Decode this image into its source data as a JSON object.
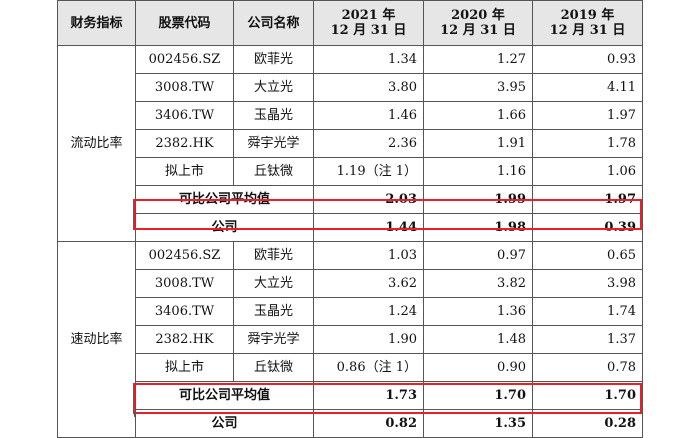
{
  "headers": {
    "metric": "财务指标",
    "code": "股票代码",
    "name": "公司名称",
    "y2021": [
      "2021 年",
      "12 月 31 日"
    ],
    "y2020": [
      "2020 年",
      "12 月 31 日"
    ],
    "y2019": [
      "2019 年",
      "12 月 31 日"
    ]
  },
  "groups": [
    {
      "metric": "流动比率",
      "rows": [
        {
          "code": "002456.SZ",
          "name": "欧菲光",
          "v2021": "1.34",
          "v2020": "1.27",
          "v2019": "0.93"
        },
        {
          "code": "3008.TW",
          "name": "大立光",
          "v2021": "3.80",
          "v2020": "3.95",
          "v2019": "4.11"
        },
        {
          "code": "3406.TW",
          "name": "玉晶光",
          "v2021": "1.46",
          "v2020": "1.66",
          "v2019": "1.97"
        },
        {
          "code": "2382.HK",
          "name": "舜宇光学",
          "v2021": "2.36",
          "v2020": "1.91",
          "v2019": "1.78"
        },
        {
          "code": "拟上市",
          "name": "丘钛微",
          "v2021": "1.19（注 1）",
          "v2020": "1.16",
          "v2019": "1.06"
        }
      ],
      "average": {
        "label": "可比公司平均值",
        "v2021": "2.03",
        "v2020": "1.99",
        "v2019": "1.97"
      },
      "company": {
        "label": "公司",
        "v2021": "1.44",
        "v2020": "1.98",
        "v2019": "0.39"
      }
    },
    {
      "metric": "速动比率",
      "rows": [
        {
          "code": "002456.SZ",
          "name": "欧菲光",
          "v2021": "1.03",
          "v2020": "0.97",
          "v2019": "0.65"
        },
        {
          "code": "3008.TW",
          "name": "大立光",
          "v2021": "3.62",
          "v2020": "3.82",
          "v2019": "3.98"
        },
        {
          "code": "3406.TW",
          "name": "玉晶光",
          "v2021": "1.24",
          "v2020": "1.36",
          "v2019": "1.74"
        },
        {
          "code": "2382.HK",
          "name": "舜宇光学",
          "v2021": "1.90",
          "v2020": "1.48",
          "v2019": "1.37"
        },
        {
          "code": "拟上市",
          "name": "丘钛微",
          "v2021": "0.86（注 1）",
          "v2020": "0.90",
          "v2019": "0.78"
        }
      ],
      "average": {
        "label": "可比公司平均值",
        "v2021": "1.73",
        "v2020": "1.70",
        "v2019": "1.70"
      },
      "company": {
        "label": "公司",
        "v2021": "0.82",
        "v2020": "1.35",
        "v2019": "0.28"
      }
    }
  ],
  "highlight_color": "#e8202a"
}
